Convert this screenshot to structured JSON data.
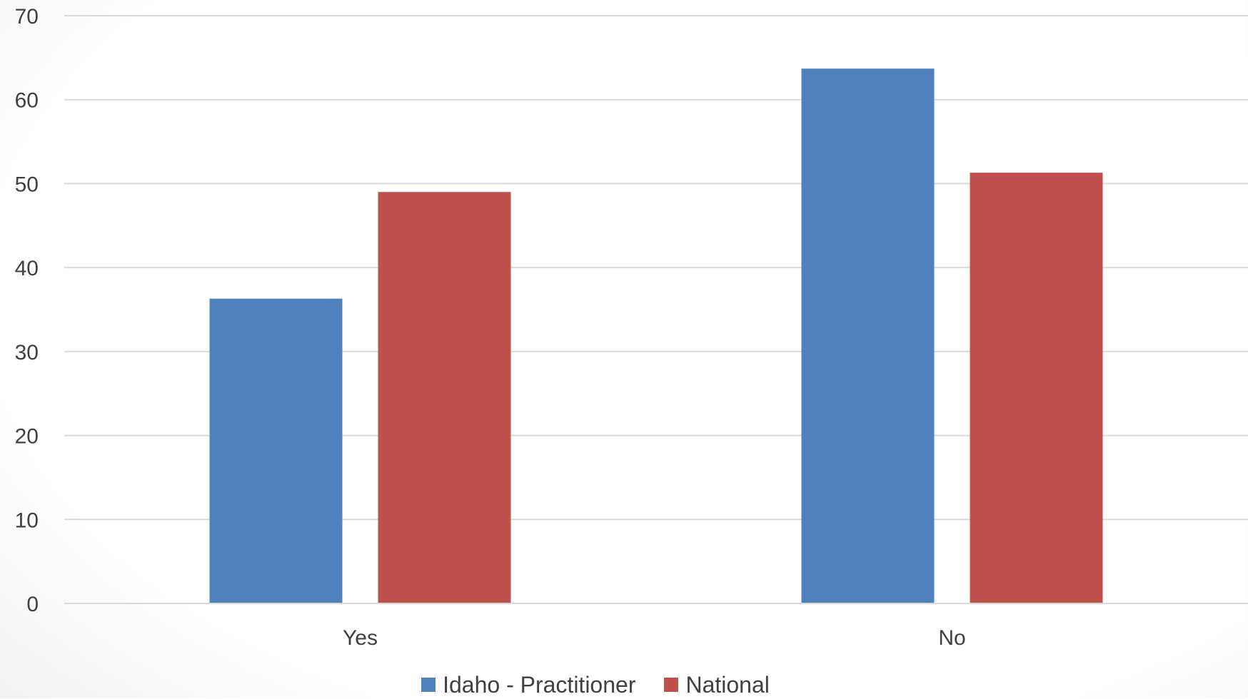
{
  "chart_data": {
    "type": "bar",
    "categories": [
      "Yes",
      "No"
    ],
    "series": [
      {
        "name": "Idaho - Practitioner",
        "values": [
          36.3,
          63.7
        ],
        "color": "#4F81BD"
      },
      {
        "name": "National",
        "values": [
          49.0,
          51.3
        ],
        "color": "#C0504D"
      }
    ],
    "title": "",
    "xlabel": "",
    "ylabel": "",
    "ylim": [
      0,
      70
    ],
    "yticks": [
      "0",
      "10",
      "20",
      "30",
      "40",
      "50",
      "60",
      "70"
    ],
    "grid": true,
    "legend_position": "bottom"
  }
}
